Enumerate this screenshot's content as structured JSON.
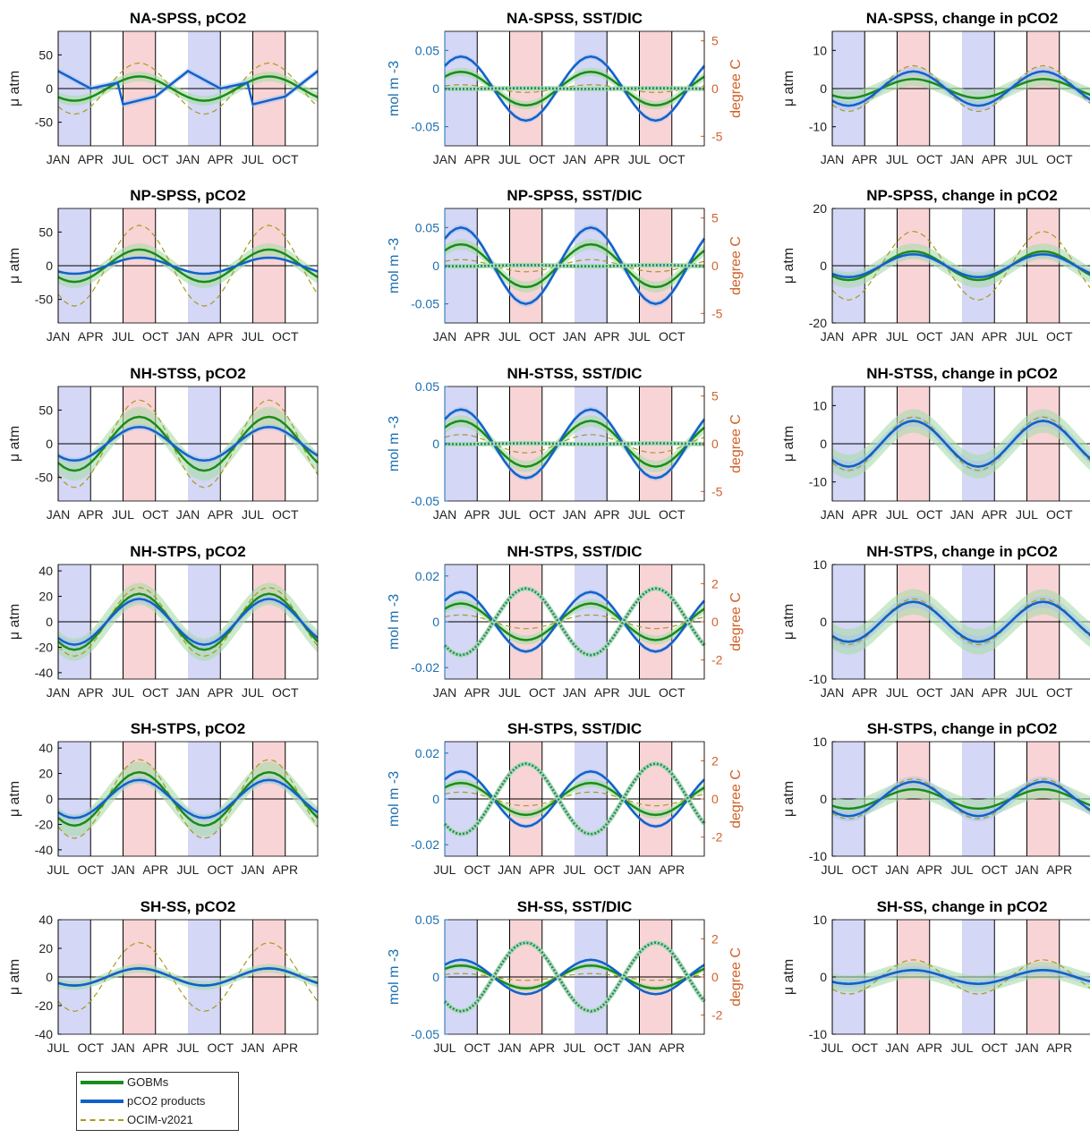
{
  "months_nh": [
    "JAN",
    "APR",
    "JUL",
    "OCT",
    "JAN",
    "APR",
    "JUL",
    "OCT"
  ],
  "months_sh": [
    "JUL",
    "OCT",
    "JAN",
    "APR",
    "JUL",
    "OCT",
    "JAN",
    "APR"
  ],
  "colors": {
    "gobm": "#1a8c1a",
    "gobm_band": "#a8dca8",
    "products": "#1261c9",
    "products_band": "#a9c4ee",
    "ocim": "#a89a1e",
    "winter": "#d4d7f5",
    "summer": "#f8d4d6",
    "axis_left": "#1a6fb0",
    "axis_right": "#d0622a"
  },
  "legend": [
    {
      "label": "GOBMs",
      "color": "#1a8c1a",
      "style": "solid"
    },
    {
      "label": "pCO2 products",
      "color": "#1261c9",
      "style": "solid"
    },
    {
      "label": "OCIM-v2021",
      "color": "#a89a1e",
      "style": "dashed"
    }
  ],
  "chart_data": [
    {
      "type": "line",
      "title": "NA-SPSS, pCO2",
      "ylabel": "μ atm",
      "ylim": [
        -85,
        85
      ],
      "yticks": [
        -50,
        0,
        50
      ],
      "hemisphere": "N",
      "amp": {
        "g": 18,
        "p": 26,
        "o": 38
      },
      "phase": "summer",
      "pshape": "saw"
    },
    {
      "type": "line",
      "title": "NA-SPSS, SST/DIC",
      "ylabel": "mol m -3",
      "ylabel2": "degree C",
      "ylim": [
        -0.075,
        0.075
      ],
      "yticks": [
        -0.05,
        0,
        0.05
      ],
      "ylim2": [
        -6,
        6
      ],
      "yticks2": [
        -5,
        0,
        5
      ],
      "hemisphere": "N",
      "amp": {
        "g": 0.022,
        "p": 0.042,
        "o": 0.005,
        "sst": 0.038
      }
    },
    {
      "type": "line",
      "title": "NA-SPSS, change in pCO2",
      "ylabel": "μ atm",
      "ylim": [
        -15,
        15
      ],
      "yticks": [
        -10,
        0,
        10
      ],
      "hemisphere": "N",
      "amp": {
        "g": 2.5,
        "p": 4.5,
        "o": 6
      },
      "phase": "summer"
    },
    {
      "type": "line",
      "title": "NP-SPSS, pCO2",
      "ylabel": "μ atm",
      "ylim": [
        -85,
        85
      ],
      "yticks": [
        -50,
        0,
        50
      ],
      "hemisphere": "N",
      "amp": {
        "g": 24,
        "p": 12,
        "o": 60
      },
      "phase": "summer"
    },
    {
      "type": "line",
      "title": "NP-SPSS, SST/DIC",
      "ylabel": "mol m -3",
      "ylabel2": "degree C",
      "ylim": [
        -0.075,
        0.075
      ],
      "yticks": [
        -0.05,
        0,
        0.05
      ],
      "ylim2": [
        -6,
        6
      ],
      "yticks2": [
        -5,
        0,
        5
      ],
      "hemisphere": "N",
      "amp": {
        "g": 0.028,
        "p": 0.05,
        "o": 0.008,
        "sst": 0.06
      }
    },
    {
      "type": "line",
      "title": "NP-SPSS, change in pCO2",
      "ylabel": "μ atm",
      "ylim": [
        -20,
        20
      ],
      "yticks": [
        -20,
        0,
        20
      ],
      "hemisphere": "N",
      "amp": {
        "g": 5,
        "p": 4,
        "o": 12
      },
      "phase": "summer"
    },
    {
      "type": "line",
      "title": "NH-STSS, pCO2",
      "ylabel": "μ atm",
      "ylim": [
        -85,
        85
      ],
      "yticks": [
        -50,
        0,
        50
      ],
      "hemisphere": "N",
      "amp": {
        "g": 40,
        "p": 25,
        "o": 65
      },
      "phase": "summer"
    },
    {
      "type": "line",
      "title": "NH-STSS, SST/DIC",
      "ylabel": "mol m -3",
      "ylabel2": "degree C",
      "ylim": [
        -0.05,
        0.05
      ],
      "yticks": [
        -0.05,
        0,
        0.05
      ],
      "ylim2": [
        -6,
        6
      ],
      "yticks2": [
        -5,
        0,
        5
      ],
      "hemisphere": "N",
      "amp": {
        "g": 0.02,
        "p": 0.03,
        "o": 0.008,
        "sst": 0.045
      }
    },
    {
      "type": "line",
      "title": "NH-STSS, change in pCO2",
      "ylabel": "μ atm",
      "ylim": [
        -15,
        15
      ],
      "yticks": [
        -10,
        0,
        10
      ],
      "hemisphere": "N",
      "amp": {
        "g": 6,
        "p": 6,
        "o": 7
      },
      "phase": "summer"
    },
    {
      "type": "line",
      "title": "NH-STPS, pCO2",
      "ylabel": "μ atm",
      "ylim": [
        -45,
        45
      ],
      "yticks": [
        -40,
        -20,
        0,
        20,
        40
      ],
      "hemisphere": "N",
      "amp": {
        "g": 22,
        "p": 18,
        "o": 27
      },
      "phase": "summer"
    },
    {
      "type": "line",
      "title": "NH-STPS, SST/DIC",
      "ylabel": "mol m -3",
      "ylabel2": "degree C",
      "ylim": [
        -0.025,
        0.025
      ],
      "yticks": [
        -0.02,
        0,
        0.02
      ],
      "ylim2": [
        -3,
        3
      ],
      "yticks2": [
        -2,
        0,
        2
      ],
      "hemisphere": "N",
      "amp": {
        "g": 0.008,
        "p": 0.013,
        "o": 0.003,
        "sst": 1.75
      }
    },
    {
      "type": "line",
      "title": "NH-STPS, change in pCO2",
      "ylabel": "μ atm",
      "ylim": [
        -10,
        10
      ],
      "yticks": [
        -10,
        0,
        10
      ],
      "hemisphere": "N",
      "amp": {
        "g": 3.5,
        "p": 3.5,
        "o": 4
      },
      "phase": "summer"
    },
    {
      "type": "line",
      "title": "SH-STPS, pCO2",
      "ylabel": "μ atm",
      "ylim": [
        -45,
        45
      ],
      "yticks": [
        -40,
        -20,
        0,
        20,
        40
      ],
      "hemisphere": "S",
      "amp": {
        "g": 21,
        "p": 15,
        "o": 31
      },
      "phase": "summer"
    },
    {
      "type": "line",
      "title": "SH-STPS, SST/DIC",
      "ylabel": "mol m -3",
      "ylabel2": "degree C",
      "ylim": [
        -0.025,
        0.025
      ],
      "yticks": [
        -0.02,
        0,
        0.02
      ],
      "ylim2": [
        -3,
        3
      ],
      "yticks2": [
        -2,
        0,
        2
      ],
      "hemisphere": "S",
      "amp": {
        "g": 0.007,
        "p": 0.012,
        "o": 0.003,
        "sst": 1.85
      }
    },
    {
      "type": "line",
      "title": "SH-STPS, change in pCO2",
      "ylabel": "μ atm",
      "ylim": [
        -10,
        10
      ],
      "yticks": [
        -10,
        0,
        10
      ],
      "hemisphere": "S",
      "amp": {
        "g": 1.7,
        "p": 3,
        "o": 3.5
      },
      "phase": "summer"
    },
    {
      "type": "line",
      "title": "SH-SS, pCO2",
      "ylabel": "μ atm",
      "ylim": [
        -40,
        40
      ],
      "yticks": [
        -40,
        -20,
        0,
        20,
        40
      ],
      "hemisphere": "S",
      "amp": {
        "g": 6,
        "p": 6,
        "o": 24
      },
      "phase": "summer"
    },
    {
      "type": "line",
      "title": "SH-SS, SST/DIC",
      "ylabel": "mol m -3",
      "ylabel2": "degree C",
      "ylim": [
        -0.05,
        0.05
      ],
      "yticks": [
        -0.05,
        0,
        0.05
      ],
      "ylim2": [
        -3,
        3
      ],
      "yticks2": [
        -2,
        0,
        2
      ],
      "hemisphere": "S",
      "amp": {
        "g": 0.01,
        "p": 0.015,
        "o": 0.003,
        "sst": 1.8
      }
    },
    {
      "type": "line",
      "title": "SH-SS, change in pCO2",
      "ylabel": "μ atm",
      "ylim": [
        -10,
        10
      ],
      "yticks": [
        -10,
        0,
        10
      ],
      "hemisphere": "S",
      "amp": {
        "g": 1.2,
        "p": 1.2,
        "o": 3
      },
      "phase": "summer"
    }
  ]
}
